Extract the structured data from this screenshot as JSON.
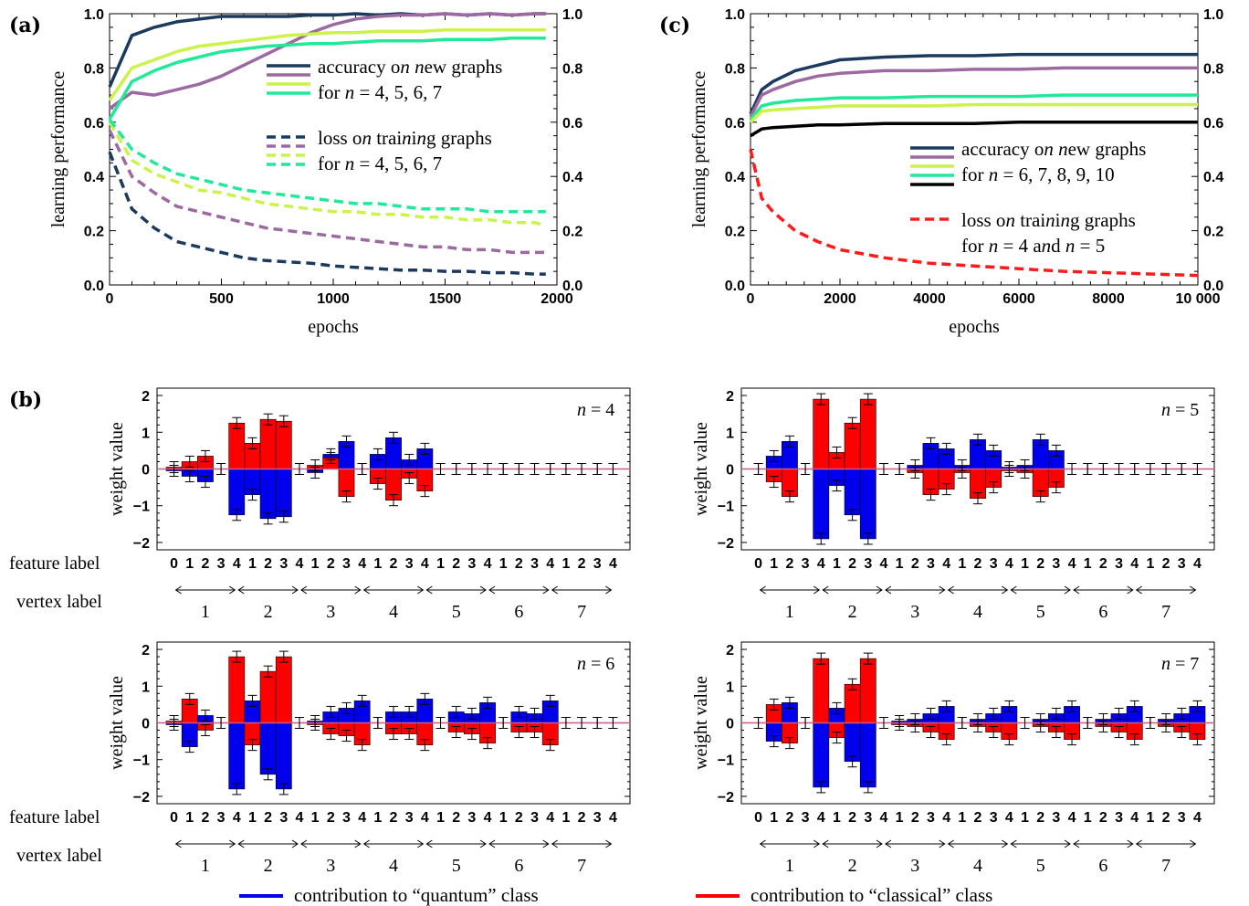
{
  "chart_data": [
    {
      "panel": "(a)",
      "type": "line",
      "xlabel": "epochs",
      "ylabel": "learning performance",
      "xlim": [
        0,
        2000
      ],
      "ylim": [
        0,
        1.0
      ],
      "x_ticks": [
        "0",
        "500",
        "1000",
        "1500",
        "2000"
      ],
      "y_ticks": [
        "0.0",
        "0.2",
        "0.4",
        "0.6",
        "0.8",
        "1.0"
      ],
      "legend": [
        {
          "text": "accuracy on new graphs",
          "style": "solid",
          "colors": [
            "#1b3a5e",
            "#9c6aa0",
            "#ccf24b",
            "#22e89a"
          ]
        },
        {
          "text": "for n = 4, 5, 6, 7",
          "style": "none"
        },
        {
          "text": "loss on training graphs",
          "style": "dashed",
          "colors": [
            "#1b3a5e",
            "#9c6aa0",
            "#ccf24b",
            "#22e89a"
          ]
        },
        {
          "text": "for n = 4, 5, 6, 7",
          "style": "none"
        }
      ],
      "x": [
        0,
        100,
        200,
        300,
        400,
        500,
        600,
        700,
        800,
        900,
        1000,
        1100,
        1200,
        1300,
        1400,
        1500,
        1600,
        1700,
        1800,
        1900,
        1950
      ],
      "series": [
        {
          "color": "#1b3a5e",
          "style": "solid",
          "values": [
            0.73,
            0.92,
            0.95,
            0.97,
            0.98,
            0.99,
            0.99,
            0.99,
            0.99,
            0.995,
            0.995,
            1.0,
            0.995,
            1.0,
            0.995,
            1.0,
            0.995,
            1.0,
            0.995,
            1.0,
            1.0
          ]
        },
        {
          "color": "#9c6aa0",
          "style": "solid",
          "values": [
            0.65,
            0.71,
            0.7,
            0.72,
            0.74,
            0.77,
            0.81,
            0.85,
            0.89,
            0.93,
            0.96,
            0.98,
            0.99,
            0.995,
            0.995,
            1.0,
            0.995,
            1.0,
            0.995,
            1.0,
            1.0
          ]
        },
        {
          "color": "#ccf24b",
          "style": "solid",
          "values": [
            0.68,
            0.8,
            0.83,
            0.86,
            0.88,
            0.89,
            0.9,
            0.91,
            0.92,
            0.925,
            0.93,
            0.93,
            0.935,
            0.935,
            0.935,
            0.94,
            0.94,
            0.94,
            0.94,
            0.94,
            0.94
          ]
        },
        {
          "color": "#22e89a",
          "style": "solid",
          "values": [
            0.61,
            0.75,
            0.79,
            0.82,
            0.84,
            0.86,
            0.87,
            0.88,
            0.885,
            0.89,
            0.89,
            0.895,
            0.9,
            0.9,
            0.9,
            0.905,
            0.905,
            0.905,
            0.91,
            0.91,
            0.91
          ]
        },
        {
          "color": "#1b3a5e",
          "style": "dashed",
          "values": [
            0.49,
            0.28,
            0.21,
            0.16,
            0.14,
            0.12,
            0.1,
            0.09,
            0.085,
            0.08,
            0.07,
            0.065,
            0.06,
            0.055,
            0.055,
            0.05,
            0.05,
            0.045,
            0.045,
            0.04,
            0.04
          ]
        },
        {
          "color": "#9c6aa0",
          "style": "dashed",
          "values": [
            0.57,
            0.4,
            0.34,
            0.29,
            0.27,
            0.25,
            0.23,
            0.21,
            0.2,
            0.19,
            0.18,
            0.17,
            0.16,
            0.15,
            0.14,
            0.14,
            0.13,
            0.13,
            0.12,
            0.12,
            0.12
          ]
        },
        {
          "color": "#ccf24b",
          "style": "dashed",
          "values": [
            0.6,
            0.46,
            0.41,
            0.38,
            0.35,
            0.34,
            0.32,
            0.3,
            0.29,
            0.28,
            0.27,
            0.27,
            0.26,
            0.26,
            0.25,
            0.25,
            0.24,
            0.24,
            0.23,
            0.23,
            0.22
          ]
        },
        {
          "color": "#22e89a",
          "style": "dashed",
          "values": [
            0.61,
            0.5,
            0.45,
            0.41,
            0.39,
            0.37,
            0.35,
            0.34,
            0.33,
            0.32,
            0.31,
            0.3,
            0.3,
            0.29,
            0.28,
            0.28,
            0.28,
            0.27,
            0.27,
            0.27,
            0.27
          ]
        }
      ]
    },
    {
      "panel": "(c)",
      "type": "line",
      "xlabel": "epochs",
      "ylabel": "learning performance",
      "xlim": [
        0,
        10000
      ],
      "ylim": [
        0,
        1.0
      ],
      "x_ticks": [
        "0",
        "2000",
        "4000",
        "6000",
        "8000",
        "10 000"
      ],
      "y_ticks": [
        "0.0",
        "0.2",
        "0.4",
        "0.6",
        "0.8",
        "1.0"
      ],
      "legend": [
        {
          "text": "accuracy on new graphs",
          "style": "solid",
          "colors": [
            "#1b3a5e",
            "#9c6aa0",
            "#ccf24b",
            "#22e89a",
            "#000000"
          ]
        },
        {
          "text": "for n = 6, 7, 8, 9, 10",
          "style": "none"
        },
        {
          "text": "loss on training graphs",
          "style": "dashed",
          "colors": [
            "#ff1a1a"
          ]
        },
        {
          "text": "for n = 4 and n = 5",
          "style": "none"
        }
      ],
      "x": [
        0,
        250,
        500,
        1000,
        1500,
        2000,
        3000,
        4000,
        5000,
        6000,
        7000,
        8000,
        9000,
        10000
      ],
      "series": [
        {
          "color": "#1b3a5e",
          "style": "solid",
          "values": [
            0.63,
            0.72,
            0.75,
            0.79,
            0.81,
            0.83,
            0.84,
            0.845,
            0.845,
            0.85,
            0.85,
            0.85,
            0.85,
            0.85
          ]
        },
        {
          "color": "#9c6aa0",
          "style": "solid",
          "values": [
            0.62,
            0.7,
            0.72,
            0.75,
            0.77,
            0.78,
            0.79,
            0.79,
            0.795,
            0.795,
            0.8,
            0.8,
            0.8,
            0.8
          ]
        },
        {
          "color": "#22e89a",
          "style": "solid",
          "values": [
            0.61,
            0.66,
            0.67,
            0.68,
            0.685,
            0.69,
            0.69,
            0.695,
            0.695,
            0.695,
            0.7,
            0.7,
            0.7,
            0.7
          ]
        },
        {
          "color": "#ccf24b",
          "style": "solid",
          "values": [
            0.6,
            0.64,
            0.645,
            0.65,
            0.655,
            0.66,
            0.66,
            0.66,
            0.665,
            0.665,
            0.665,
            0.665,
            0.665,
            0.665
          ]
        },
        {
          "color": "#000000",
          "style": "solid",
          "values": [
            0.55,
            0.575,
            0.58,
            0.585,
            0.59,
            0.59,
            0.595,
            0.595,
            0.595,
            0.6,
            0.6,
            0.6,
            0.6,
            0.6
          ]
        },
        {
          "color": "#ff1a1a",
          "style": "dashed",
          "values": [
            0.5,
            0.32,
            0.27,
            0.2,
            0.16,
            0.13,
            0.1,
            0.08,
            0.07,
            0.06,
            0.05,
            0.045,
            0.04,
            0.035
          ]
        }
      ]
    },
    {
      "panel": "(b)",
      "type": "bar",
      "subpanels": [
        {
          "n_label": "n = 4",
          "ylabel": "weight value",
          "ylim": [
            -2.2,
            2.2
          ],
          "y_ticks": [
            "-2",
            "-1",
            "0",
            "1",
            "2"
          ],
          "feature_labels": [
            "0",
            "1",
            "2",
            "3",
            "4",
            "1",
            "2",
            "3",
            "4",
            "1",
            "2",
            "3",
            "4",
            "1",
            "2",
            "3",
            "4",
            "1",
            "2",
            "3",
            "4",
            "1",
            "2",
            "3",
            "4",
            "1",
            "2",
            "3",
            "4"
          ],
          "classical": [
            0.05,
            0.2,
            0.35,
            0.0,
            1.25,
            0.7,
            1.35,
            1.3,
            0.0,
            0.1,
            0.3,
            -0.75,
            0.0,
            -0.4,
            -0.85,
            -0.25,
            -0.6,
            0,
            0,
            0,
            0,
            0,
            0,
            0,
            0,
            0,
            0,
            0,
            0
          ],
          "quantum": [
            -0.05,
            -0.2,
            -0.35,
            0.0,
            -1.25,
            -0.7,
            -1.35,
            -1.3,
            0.0,
            -0.1,
            0.4,
            0.75,
            0.0,
            0.4,
            0.85,
            0.25,
            0.55,
            0,
            0,
            0,
            0,
            0,
            0,
            0,
            0,
            0,
            0,
            0,
            0
          ]
        },
        {
          "n_label": "n = 5",
          "ylabel": "weight value",
          "ylim": [
            -2.2,
            2.2
          ],
          "y_ticks": [
            "-2",
            "-1",
            "0",
            "1",
            "2"
          ],
          "feature_labels": [
            "0",
            "1",
            "2",
            "3",
            "4",
            "1",
            "2",
            "3",
            "4",
            "1",
            "2",
            "3",
            "4",
            "1",
            "2",
            "3",
            "4",
            "1",
            "2",
            "3",
            "4",
            "1",
            "2",
            "3",
            "4",
            "1",
            "2",
            "3",
            "4"
          ],
          "classical": [
            0.0,
            -0.35,
            -0.75,
            0.0,
            1.9,
            0.45,
            1.25,
            1.9,
            0.0,
            0.0,
            -0.1,
            -0.7,
            -0.55,
            -0.1,
            -0.8,
            -0.5,
            -0.05,
            -0.1,
            -0.75,
            -0.5,
            0,
            0,
            0,
            0,
            0,
            0,
            0,
            0,
            0
          ],
          "quantum": [
            0.0,
            0.35,
            0.75,
            0.0,
            -1.9,
            -0.45,
            -1.25,
            -1.9,
            0.0,
            0.0,
            0.1,
            0.7,
            0.55,
            0.1,
            0.8,
            0.5,
            0.05,
            0.1,
            0.8,
            0.5,
            0,
            0,
            0,
            0,
            0,
            0,
            0,
            0,
            0
          ]
        },
        {
          "n_label": "n = 6",
          "ylabel": "weight value",
          "ylim": [
            -2.2,
            2.2
          ],
          "y_ticks": [
            "-2",
            "-1",
            "0",
            "1",
            "2"
          ],
          "feature_labels": [
            "0",
            "1",
            "2",
            "3",
            "4",
            "1",
            "2",
            "3",
            "4",
            "1",
            "2",
            "3",
            "4",
            "1",
            "2",
            "3",
            "4",
            "1",
            "2",
            "3",
            "4",
            "1",
            "2",
            "3",
            "4",
            "1",
            "2",
            "3",
            "4"
          ],
          "classical": [
            0.05,
            0.65,
            -0.2,
            0.0,
            1.8,
            -0.6,
            1.4,
            1.8,
            0.0,
            -0.05,
            -0.3,
            -0.35,
            -0.6,
            0.0,
            -0.3,
            -0.3,
            -0.6,
            0.0,
            -0.25,
            -0.3,
            -0.55,
            0.0,
            -0.25,
            -0.25,
            -0.6,
            0,
            0,
            0,
            0
          ],
          "quantum": [
            -0.05,
            -0.65,
            0.2,
            0.0,
            -1.8,
            0.6,
            -1.4,
            -1.8,
            0.0,
            0.05,
            0.3,
            0.4,
            0.6,
            0.0,
            0.3,
            0.3,
            0.65,
            0.0,
            0.3,
            0.25,
            0.55,
            0.0,
            0.3,
            0.25,
            0.6,
            0,
            0,
            0,
            0
          ]
        },
        {
          "n_label": "n = 7",
          "ylabel": "weight value",
          "ylim": [
            -2.2,
            2.2
          ],
          "y_ticks": [
            "-2",
            "-1",
            "0",
            "1",
            "2"
          ],
          "feature_labels": [
            "0",
            "1",
            "2",
            "3",
            "4",
            "1",
            "2",
            "3",
            "4",
            "1",
            "2",
            "3",
            "4",
            "1",
            "2",
            "3",
            "4",
            "1",
            "2",
            "3",
            "4",
            "1",
            "2",
            "3",
            "4",
            "1",
            "2",
            "3",
            "4"
          ],
          "classical": [
            0.0,
            0.5,
            -0.55,
            0.0,
            1.75,
            -0.4,
            1.05,
            1.75,
            0.0,
            -0.05,
            -0.1,
            -0.25,
            -0.45,
            0.0,
            -0.1,
            -0.25,
            -0.45,
            0.0,
            -0.1,
            -0.25,
            -0.45,
            0.0,
            -0.1,
            -0.25,
            -0.45,
            0.0,
            -0.1,
            -0.25,
            -0.45
          ],
          "quantum": [
            0.0,
            -0.5,
            0.55,
            0.0,
            -1.75,
            0.4,
            -1.05,
            -1.75,
            0.0,
            0.05,
            0.1,
            0.25,
            0.45,
            0.0,
            0.1,
            0.25,
            0.45,
            0.0,
            0.1,
            0.25,
            0.45,
            0.0,
            0.1,
            0.25,
            0.45,
            0.0,
            0.1,
            0.25,
            0.45
          ]
        }
      ],
      "row_labels": {
        "feature": "feature label",
        "vertex": "vertex label"
      },
      "vertex_labels": [
        "1",
        "2",
        "3",
        "4",
        "5",
        "6",
        "7"
      ],
      "legend": [
        {
          "text": "contribution to “quantum” class",
          "color": "#0000ee"
        },
        {
          "text": "contribution to “classical” class",
          "color": "#ff0000"
        }
      ]
    }
  ]
}
